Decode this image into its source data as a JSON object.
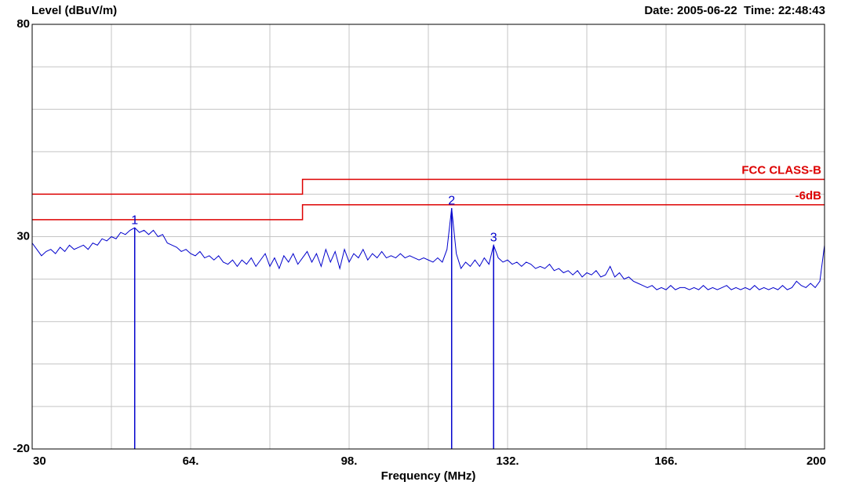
{
  "chart_data": {
    "type": "line",
    "title": "Level (dBuV/m)",
    "subtitle": "Date: 2005-06-22  Time: 22:48:43",
    "x_label": "Frequency (MHz)",
    "xlim": [
      30,
      200
    ],
    "ylim": [
      -20,
      80
    ],
    "xticks": [
      30,
      {
        "value": 64,
        "label": "64."
      },
      {
        "value": 98,
        "label": "98."
      },
      {
        "value": 132,
        "label": "132."
      },
      {
        "value": 166,
        "label": "166."
      },
      200
    ],
    "yticks": [
      80,
      30,
      -20
    ],
    "xgrid": [
      47,
      81,
      115,
      149,
      183
    ],
    "ygrid": [
      70,
      60,
      50,
      40,
      20,
      10,
      0,
      -10
    ],
    "grid": true,
    "series": [
      {
        "name": "Level",
        "color": "#0000cc",
        "x": [
          30,
          31,
          32,
          33,
          34,
          35,
          36,
          37,
          38,
          39,
          40,
          41,
          42,
          43,
          44,
          45,
          46,
          47,
          48,
          49,
          50,
          51,
          52,
          53,
          54,
          55,
          56,
          57,
          58,
          59,
          60,
          61,
          62,
          63,
          64,
          65,
          66,
          67,
          68,
          69,
          70,
          71,
          72,
          73,
          74,
          75,
          76,
          77,
          78,
          79,
          80,
          81,
          82,
          83,
          84,
          85,
          86,
          87,
          88,
          89,
          90,
          91,
          92,
          93,
          94,
          95,
          96,
          97,
          98,
          99,
          100,
          101,
          102,
          103,
          104,
          105,
          106,
          107,
          108,
          109,
          110,
          111,
          112,
          113,
          114,
          115,
          116,
          117,
          118,
          119,
          120,
          121,
          122,
          123,
          124,
          125,
          126,
          127,
          128,
          129,
          130,
          131,
          132,
          133,
          134,
          135,
          136,
          137,
          138,
          139,
          140,
          141,
          142,
          143,
          144,
          145,
          146,
          147,
          148,
          149,
          150,
          151,
          152,
          153,
          154,
          155,
          156,
          157,
          158,
          159,
          160,
          161,
          162,
          163,
          164,
          165,
          166,
          167,
          168,
          169,
          170,
          171,
          172,
          173,
          174,
          175,
          176,
          177,
          178,
          179,
          180,
          181,
          182,
          183,
          184,
          185,
          186,
          187,
          188,
          189,
          190,
          191,
          192,
          193,
          194,
          195,
          196,
          197,
          198,
          199,
          200
        ],
        "values": [
          28.5,
          27,
          25.5,
          26.5,
          27,
          26,
          27.5,
          26.5,
          28,
          27,
          27.5,
          28,
          27,
          28.5,
          28,
          29.5,
          29,
          30,
          29.5,
          31,
          30.5,
          31.5,
          32.1,
          31,
          31.5,
          30.5,
          31.5,
          30,
          30.5,
          28.5,
          28,
          27.5,
          26.5,
          27,
          26,
          25.5,
          26.5,
          25,
          25.5,
          24.5,
          25.5,
          24,
          23.5,
          24.5,
          23,
          24.5,
          23.5,
          25,
          23,
          24.5,
          26,
          23,
          25,
          22.5,
          25.5,
          24,
          26,
          23.5,
          25,
          26.5,
          24,
          26,
          23,
          27,
          24,
          26.5,
          22.5,
          27,
          24,
          26,
          25,
          27,
          24.5,
          26,
          25,
          26.5,
          25,
          25.5,
          25,
          26,
          25,
          25.5,
          25,
          24.5,
          25,
          24.5,
          24,
          25,
          24,
          27,
          36.7,
          26,
          22.5,
          24,
          23,
          24.5,
          23,
          25,
          23.5,
          28,
          25,
          24,
          24.5,
          23.5,
          24,
          23,
          24,
          23.5,
          22.5,
          23,
          22.5,
          23.5,
          22,
          22.5,
          21.5,
          22,
          21,
          22,
          20.5,
          21.5,
          21,
          22,
          20.5,
          21,
          23,
          20.5,
          21.5,
          20,
          20.5,
          19.5,
          19,
          18.5,
          18,
          18.5,
          17.5,
          18,
          17.5,
          18.5,
          17.5,
          18,
          18,
          17.5,
          18,
          17.5,
          18.5,
          17.5,
          18,
          17.5,
          18,
          18.5,
          17.5,
          18,
          17.5,
          18,
          17.5,
          18.5,
          17.5,
          18,
          17.5,
          18,
          17.5,
          18.5,
          17.5,
          18,
          19.5,
          18.5,
          18,
          19,
          18,
          19.5,
          28
        ]
      },
      {
        "name": "FCC CLASS-B",
        "color": "#dd0000",
        "x": [
          30,
          88,
          88,
          200
        ],
        "values": [
          40,
          40,
          43.5,
          43.5
        ]
      },
      {
        "name": "-6dB",
        "color": "#dd0000",
        "x": [
          30,
          88,
          88,
          200
        ],
        "values": [
          34,
          34,
          37.5,
          37.5
        ]
      }
    ],
    "markers": [
      {
        "label": "1",
        "x": 52,
        "y": 32.1
      },
      {
        "label": "2",
        "x": 120,
        "y": 36.7
      },
      {
        "label": "3",
        "x": 129,
        "y": 28
      }
    ]
  }
}
